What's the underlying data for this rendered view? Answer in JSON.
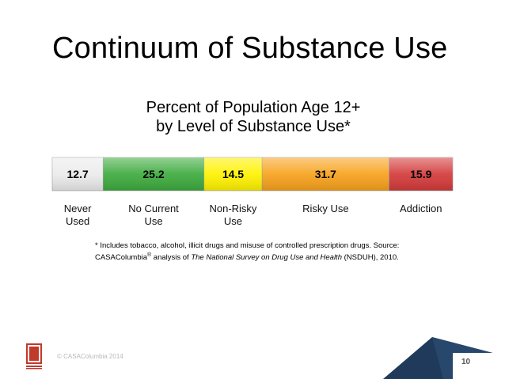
{
  "slide": {
    "title": "Continuum of Substance Use",
    "copyright": "© CASAColumbia 2014",
    "page_number": "10",
    "logo_text": "CASA",
    "logo_subtext": "COLUMBIA"
  },
  "chart_data": {
    "type": "bar",
    "orientation": "horizontal-stacked",
    "title_lines": [
      "Percent of Population Age 12+",
      "by Level of Substance Use*"
    ],
    "segments": [
      {
        "label": "Never Used",
        "label_lines": [
          "Never",
          "Used"
        ],
        "value": 12.7,
        "display": "12.7",
        "color": "#ebebeb",
        "text_color": "#000000"
      },
      {
        "label": "No Current Use",
        "label_lines": [
          "No Current",
          "Use"
        ],
        "value": 25.2,
        "display": "25.2",
        "color": "#3dab3d",
        "text_color": "#000000"
      },
      {
        "label": "Non-Risky Use",
        "label_lines": [
          "Non-Risky",
          "Use"
        ],
        "value": 14.5,
        "display": "14.5",
        "color": "#fff200",
        "text_color": "#000000"
      },
      {
        "label": "Risky Use",
        "label_lines": [
          "Risky Use"
        ],
        "value": 31.7,
        "display": "31.7",
        "color": "#f7a21c",
        "text_color": "#000000"
      },
      {
        "label": "Addiction",
        "label_lines": [
          "Addiction"
        ],
        "value": 15.9,
        "display": "15.9",
        "color": "#d43a3a",
        "text_color": "#000000"
      }
    ],
    "footnote": {
      "line1": "* Includes tobacco, alcohol, illicit drugs and misuse of controlled prescription drugs.  Source:",
      "line2_prefix": "CASAColumbia",
      "line2_mark": "®",
      "line2_mid": " analysis of ",
      "line2_italic": "The National Survey on Drug Use and Health",
      "line2_suffix": " (NSDUH), 2010."
    }
  }
}
